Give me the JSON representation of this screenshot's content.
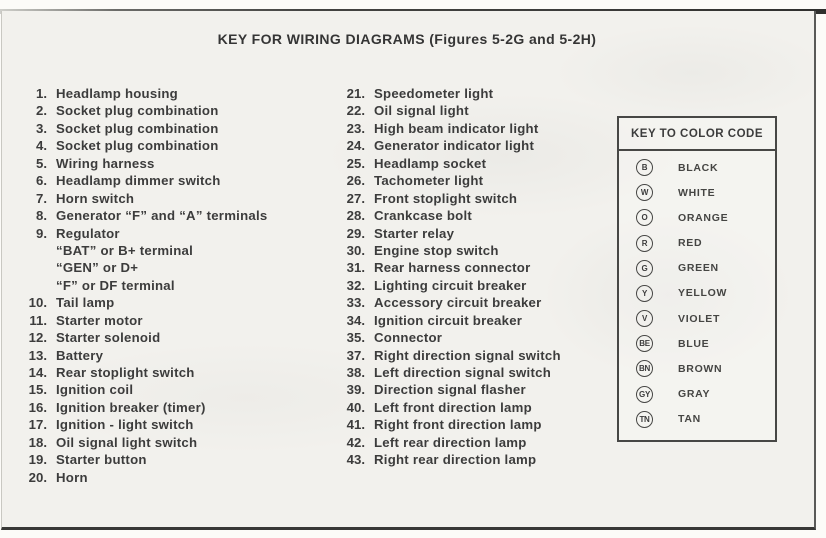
{
  "title": "KEY FOR WIRING DIAGRAMS (Figures 5-2G and 5-2H)",
  "left_column": [
    {
      "num": "1.",
      "label": "Headlamp housing"
    },
    {
      "num": "2.",
      "label": "Socket plug combination"
    },
    {
      "num": "3.",
      "label": "Socket plug combination"
    },
    {
      "num": "4.",
      "label": "Socket plug combination"
    },
    {
      "num": "5.",
      "label": "Wiring harness"
    },
    {
      "num": "6.",
      "label": "Headlamp dimmer switch"
    },
    {
      "num": "7.",
      "label": "Horn switch"
    },
    {
      "num": "8.",
      "label": "Generator “F” and “A” terminals"
    },
    {
      "num": "9.",
      "label": "Regulator"
    },
    {
      "num": "",
      "label": "“BAT” or B+ terminal"
    },
    {
      "num": "",
      "label": "“GEN” or D+"
    },
    {
      "num": "",
      "label": "“F” or DF terminal"
    },
    {
      "num": "10.",
      "label": "Tail lamp"
    },
    {
      "num": "11.",
      "label": "Starter motor"
    },
    {
      "num": "12.",
      "label": "Starter solenoid"
    },
    {
      "num": "13.",
      "label": "Battery"
    },
    {
      "num": "14.",
      "label": "Rear stoplight switch"
    },
    {
      "num": "15.",
      "label": "Ignition coil"
    },
    {
      "num": "16.",
      "label": "Ignition breaker (timer)"
    },
    {
      "num": "17.",
      "label": "Ignition - light switch"
    },
    {
      "num": "18.",
      "label": "Oil signal light switch"
    },
    {
      "num": "19.",
      "label": "Starter button"
    },
    {
      "num": "20.",
      "label": "Horn"
    }
  ],
  "right_column": [
    {
      "num": "21.",
      "label": "Speedometer light"
    },
    {
      "num": "22.",
      "label": "Oil signal light"
    },
    {
      "num": "23.",
      "label": "High beam indicator light"
    },
    {
      "num": "24.",
      "label": "Generator indicator light"
    },
    {
      "num": "25.",
      "label": "Headlamp socket"
    },
    {
      "num": "26.",
      "label": "Tachometer light"
    },
    {
      "num": "27.",
      "label": "Front stoplight switch"
    },
    {
      "num": "28.",
      "label": "Crankcase bolt"
    },
    {
      "num": "29.",
      "label": "Starter relay"
    },
    {
      "num": "30.",
      "label": "Engine stop switch"
    },
    {
      "num": "31.",
      "label": "Rear harness connector"
    },
    {
      "num": "32.",
      "label": "Lighting circuit breaker"
    },
    {
      "num": "33.",
      "label": "Accessory circuit breaker"
    },
    {
      "num": "34.",
      "label": "Ignition circuit breaker"
    },
    {
      "num": "35.",
      "label": "Connector"
    },
    {
      "num": "37.",
      "label": "Right direction signal switch"
    },
    {
      "num": "38.",
      "label": "Left direction signal switch"
    },
    {
      "num": "39.",
      "label": "Direction signal flasher"
    },
    {
      "num": "40.",
      "label": "Left front direction lamp"
    },
    {
      "num": "41.",
      "label": "Right front direction lamp"
    },
    {
      "num": "42.",
      "label": "Left rear direction lamp"
    },
    {
      "num": "43.",
      "label": "Right rear direction lamp"
    }
  ],
  "color_key": {
    "title": "KEY TO COLOR CODE",
    "entries": [
      {
        "code": "B",
        "name": "BLACK"
      },
      {
        "code": "W",
        "name": "WHITE"
      },
      {
        "code": "O",
        "name": "ORANGE"
      },
      {
        "code": "R",
        "name": "RED"
      },
      {
        "code": "G",
        "name": "GREEN"
      },
      {
        "code": "Y",
        "name": "YELLOW"
      },
      {
        "code": "V",
        "name": "VIOLET"
      },
      {
        "code": "BE",
        "name": "BLUE"
      },
      {
        "code": "BN",
        "name": "BROWN"
      },
      {
        "code": "GY",
        "name": "GRAY"
      },
      {
        "code": "TN",
        "name": "TAN"
      }
    ]
  },
  "colors": {
    "page_bg": "#f2f1ed",
    "ink": "#3b3b3b",
    "border": "#474745"
  }
}
